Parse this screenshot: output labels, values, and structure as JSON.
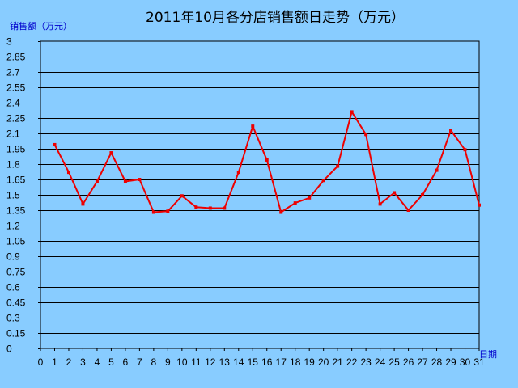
{
  "chart_data": {
    "type": "line",
    "title": "2011年10月各分店销售额日走势（万元）",
    "ylabel": "销售额（万元）",
    "xlabel": "日期",
    "x_ticks": [
      "0",
      "1",
      "2",
      "3",
      "4",
      "5",
      "6",
      "7",
      "8",
      "9",
      "10",
      "11",
      "12",
      "13",
      "14",
      "15",
      "16",
      "17",
      "18",
      "19",
      "20",
      "21",
      "22",
      "23",
      "24",
      "25",
      "26",
      "27",
      "28",
      "29",
      "30",
      "31"
    ],
    "y_ticks": [
      "3",
      "2.85",
      "2.7",
      "2.55",
      "2.4",
      "2.25",
      "2.1",
      "1.95",
      "1.8",
      "1.65",
      "1.5",
      "1.35",
      "1.2",
      "1.05",
      "0.9",
      "0.75",
      "0.6",
      "0.45",
      "0.3",
      "0.15",
      "0"
    ],
    "xlim": [
      0,
      31
    ],
    "ylim": [
      0,
      3
    ],
    "grid": true,
    "series": [
      {
        "color": "#ee0000",
        "x": [
          1,
          2,
          3,
          4,
          5,
          6,
          7,
          8,
          9,
          10,
          11,
          12,
          13,
          14,
          15,
          16,
          17,
          18,
          19,
          20,
          21,
          22,
          23,
          24,
          25,
          26,
          27,
          28,
          29,
          30,
          31
        ],
        "values": [
          1.99,
          1.72,
          1.41,
          1.63,
          1.91,
          1.63,
          1.65,
          1.33,
          1.34,
          1.49,
          1.38,
          1.37,
          1.37,
          1.72,
          2.17,
          1.84,
          1.33,
          1.42,
          1.47,
          1.64,
          1.78,
          2.31,
          2.09,
          1.41,
          1.52,
          1.35,
          1.5,
          1.74,
          2.13,
          1.94,
          1.4
        ]
      }
    ]
  }
}
